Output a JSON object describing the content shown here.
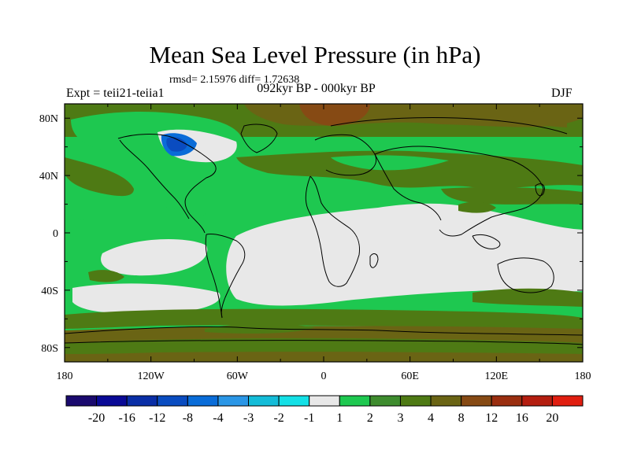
{
  "chart_data": {
    "type": "heatmap",
    "title": "Mean Sea Level Pressure (in hPa)",
    "stats_label": "rmsd= 2.15976 diff= 1.72638",
    "period_label": "092kyr BP - 000kyr BP",
    "left_label": "Expt = teii21-teiia1",
    "right_label": "DJF",
    "x_ticks": [
      "180",
      "120W",
      "60W",
      "0",
      "60E",
      "120E",
      "180"
    ],
    "y_ticks": [
      "80N",
      "40N",
      "0",
      "40S",
      "80S"
    ],
    "xlim": [
      -180,
      180
    ],
    "ylim": [
      -90,
      90
    ],
    "colorbar": {
      "labels": [
        "-20",
        "-16",
        "-12",
        "-8",
        "-4",
        "-3",
        "-2",
        "-1",
        "1",
        "2",
        "3",
        "4",
        "8",
        "12",
        "16",
        "20"
      ],
      "colors": [
        "#1a0a6e",
        "#0a0a96",
        "#0a2ea6",
        "#0a4cc0",
        "#0a6cd8",
        "#2a96e6",
        "#14bcd8",
        "#14e0e6",
        "#e8e8e8",
        "#1ec850",
        "#3e8c2e",
        "#4e7a14",
        "#6a6414",
        "#864a14",
        "#9a2e10",
        "#b41e10",
        "#e01e10"
      ]
    }
  }
}
